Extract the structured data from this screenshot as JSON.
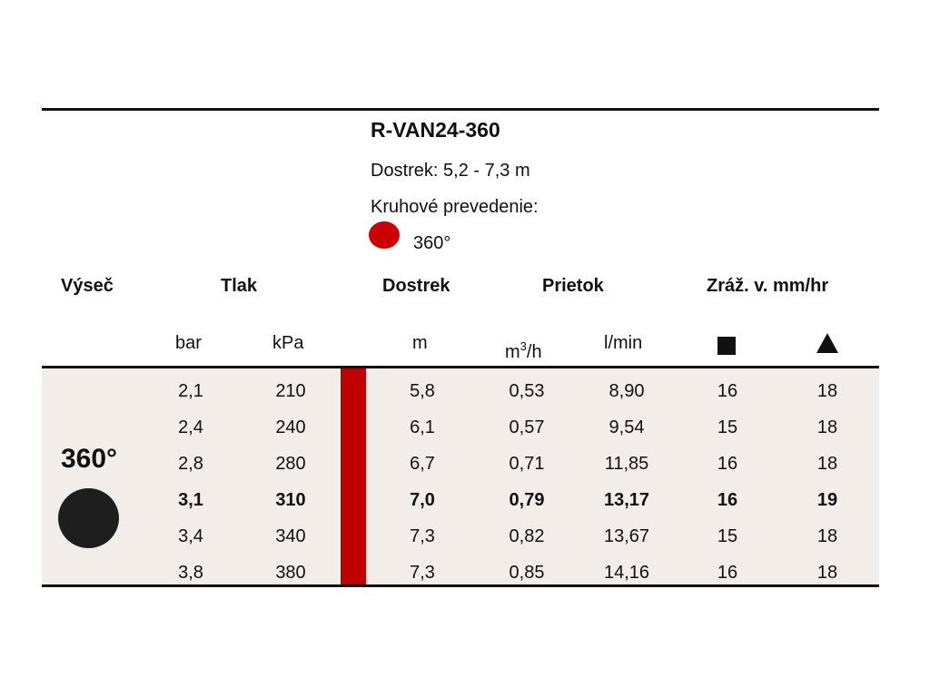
{
  "product": {
    "title": "R-VAN24-360",
    "range_text": "Dostrek: 5,2 - 7,3 m",
    "circular_label": "Kruhové prevedenie:",
    "circular_value": "360°",
    "legend_color": "#cc0000"
  },
  "headers": {
    "arc": "Výseč",
    "pressure": "Tlak",
    "radius": "Dostrek",
    "flow": "Prietok",
    "precip": "Zráž. v. mm/hr"
  },
  "units": {
    "bar": "bar",
    "kpa": "kPa",
    "m": "m",
    "m3h_base": "m",
    "m3h_exp": "3",
    "m3h_tail": "/h",
    "lmin": "l/min",
    "square_icon": "square-icon",
    "triangle_icon": "triangle-icon"
  },
  "arc": {
    "label": "360°",
    "dot_color": "#1e1e1e"
  },
  "rows": [
    {
      "bar": "2,1",
      "kpa": "210",
      "m": "5,8",
      "m3h": "0,53",
      "lmin": "8,90",
      "sq": "16",
      "tri": "18",
      "bold": false
    },
    {
      "bar": "2,4",
      "kpa": "240",
      "m": "6,1",
      "m3h": "0,57",
      "lmin": "9,54",
      "sq": "15",
      "tri": "18",
      "bold": false
    },
    {
      "bar": "2,8",
      "kpa": "280",
      "m": "6,7",
      "m3h": "0,71",
      "lmin": "11,85",
      "sq": "16",
      "tri": "18",
      "bold": false
    },
    {
      "bar": "3,1",
      "kpa": "310",
      "m": "7,0",
      "m3h": "0,79",
      "lmin": "13,17",
      "sq": "16",
      "tri": "19",
      "bold": true
    },
    {
      "bar": "3,4",
      "kpa": "340",
      "m": "7,3",
      "m3h": "0,82",
      "lmin": "13,67",
      "sq": "15",
      "tri": "18",
      "bold": false
    },
    {
      "bar": "3,8",
      "kpa": "380",
      "m": "7,3",
      "m3h": "0,85",
      "lmin": "14,16",
      "sq": "16",
      "tri": "18",
      "bold": false
    }
  ],
  "colors": {
    "accent_bar": "#c00000",
    "table_background": "#f3ede9"
  }
}
